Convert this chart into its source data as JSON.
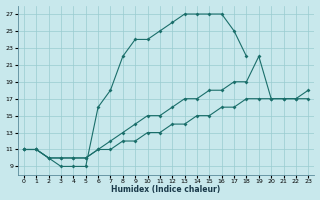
{
  "bg_color": "#c8e8ec",
  "grid_color": "#99ccd0",
  "line_color": "#1a6e6a",
  "xlabel": "Humidex (Indice chaleur)",
  "xlim": [
    -0.5,
    23.5
  ],
  "ylim": [
    8.0,
    28.0
  ],
  "xticks": [
    0,
    1,
    2,
    3,
    4,
    5,
    6,
    7,
    8,
    9,
    10,
    11,
    12,
    13,
    14,
    15,
    16,
    17,
    18,
    19,
    20,
    21,
    22,
    23
  ],
  "yticks": [
    9,
    11,
    13,
    15,
    17,
    19,
    21,
    23,
    25,
    27
  ],
  "line1_x": [
    0,
    1,
    2,
    3,
    4,
    5,
    6,
    7,
    8,
    9,
    10,
    11,
    12,
    13,
    14,
    15,
    16,
    17,
    18
  ],
  "line1_y": [
    11,
    11,
    10,
    9,
    9,
    9,
    16,
    18,
    22,
    24,
    24,
    25,
    26,
    27,
    27,
    27,
    27,
    25,
    22
  ],
  "line2_x": [
    0,
    1,
    2,
    3,
    4,
    5,
    6,
    7,
    8,
    9,
    10,
    11,
    12,
    13,
    14,
    15,
    16,
    17,
    18,
    19,
    20,
    21,
    22,
    23
  ],
  "line2_y": [
    11,
    11,
    10,
    10,
    10,
    10,
    11,
    12,
    13,
    14,
    15,
    15,
    16,
    17,
    17,
    18,
    18,
    19,
    19,
    22,
    17,
    17,
    17,
    17
  ],
  "line3_x": [
    0,
    1,
    2,
    3,
    4,
    5,
    6,
    7,
    8,
    9,
    10,
    11,
    12,
    13,
    14,
    15,
    16,
    17,
    18,
    19,
    20,
    21,
    22,
    23
  ],
  "line3_y": [
    11,
    11,
    10,
    10,
    10,
    10,
    11,
    11,
    12,
    12,
    13,
    13,
    14,
    14,
    15,
    15,
    16,
    16,
    17,
    17,
    17,
    17,
    17,
    18
  ]
}
